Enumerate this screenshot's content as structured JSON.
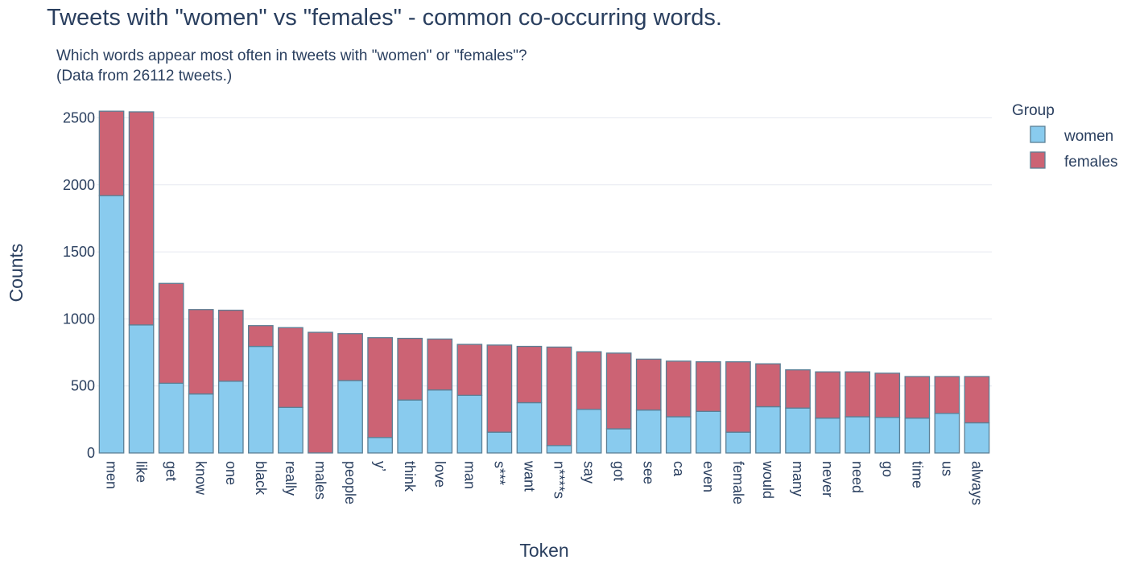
{
  "chart_data": {
    "type": "bar",
    "stacked": true,
    "title": "Tweets with \"women\" vs \"females\" - common co-occurring words.",
    "subtitle_lines": [
      "Which words appear most often in tweets with \"women\" or \"females\"?",
      "(Data from 26112 tweets.)"
    ],
    "xlabel": "Token",
    "ylabel": "Counts",
    "ylim": [
      0,
      2550
    ],
    "yticks": [
      0,
      500,
      1000,
      1500,
      2000,
      2500
    ],
    "grid": true,
    "legend": {
      "title": "Group",
      "placement": "top-right"
    },
    "categories": [
      "men",
      "like",
      "get",
      "know",
      "one",
      "black",
      "really",
      "males",
      "people",
      "y’",
      "think",
      "love",
      "man",
      "s***",
      "want",
      "n****s",
      "say",
      "got",
      "see",
      "ca",
      "even",
      "female",
      "would",
      "many",
      "never",
      "need",
      "go",
      "time",
      "us",
      "always"
    ],
    "series": [
      {
        "name": "women",
        "color": "#89cbee",
        "values": [
          1920,
          955,
          520,
          440,
          535,
          795,
          340,
          0,
          540,
          115,
          395,
          470,
          430,
          155,
          375,
          55,
          325,
          180,
          320,
          270,
          310,
          155,
          345,
          335,
          260,
          270,
          265,
          260,
          295,
          225
        ]
      },
      {
        "name": "females",
        "color": "#cc6374",
        "values": [
          630,
          1590,
          745,
          630,
          530,
          155,
          595,
          900,
          350,
          745,
          460,
          380,
          380,
          650,
          420,
          735,
          430,
          565,
          380,
          415,
          370,
          525,
          320,
          285,
          345,
          335,
          330,
          310,
          275,
          345
        ]
      }
    ]
  }
}
